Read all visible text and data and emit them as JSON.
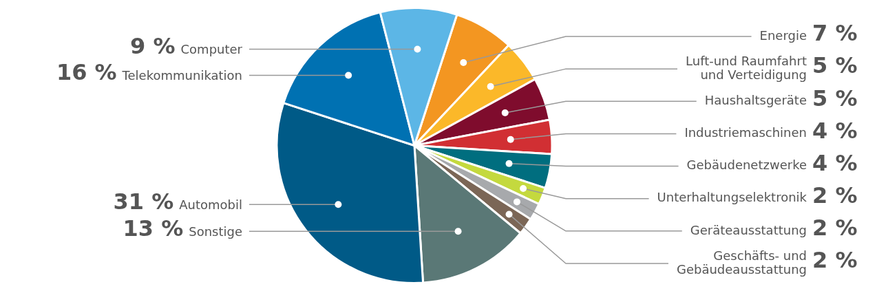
{
  "chart_data": {
    "type": "pie",
    "categories": [
      "Energie",
      "Luft-und Raumfahrt und Verteidigung",
      "Haushaltsgeräte",
      "Industriemaschinen",
      "Gebäudenetzwerke",
      "Unterhaltungselektronik",
      "Geräteausstattung",
      "Geschäfts- und Gebäudeausstattung",
      "Sonstige",
      "Automobil",
      "Telekommunikation",
      "Computer"
    ],
    "values": [
      7,
      5,
      5,
      4,
      4,
      2,
      2,
      2,
      13,
      31,
      16,
      9
    ],
    "value_labels": [
      "7 %",
      "5 %",
      "5 %",
      "4 %",
      "4 %",
      "2 %",
      "2 %",
      "2 %",
      "13 %",
      "31 %",
      "16 %",
      "9 %"
    ],
    "colors": [
      "#f39621",
      "#fbb829",
      "#7f0c2d",
      "#d12f33",
      "#006e7f",
      "#c4d93e",
      "#a7a9ac",
      "#7b6656",
      "#5a7876",
      "#005a87",
      "#0071b2",
      "#5cb6e6"
    ],
    "legend": false
  }
}
